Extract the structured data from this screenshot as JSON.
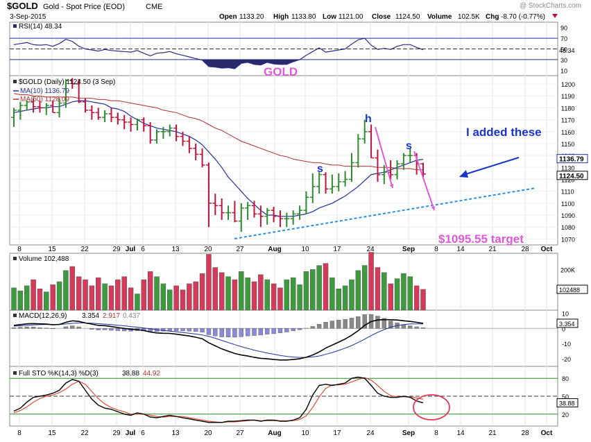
{
  "header": {
    "symbol": "$GOLD",
    "description": "Gold - Spot Price (EOD)",
    "exchange": "CME",
    "watermark": "@ StockCharts.com",
    "date": "3-Sep-2015",
    "open_label": "Open",
    "open": "1133.20",
    "high_label": "High",
    "high": "1133.80",
    "low_label": "Low",
    "low": "1121.00",
    "close_label": "Close",
    "close": "1124.50",
    "volume_label": "Volume",
    "volume": "102.5K",
    "chg_label": "Chg",
    "chg": "-8.70 (-0.77%)"
  },
  "rsi_panel": {
    "legend": "RSI(14) 48.34",
    "value": "48.34",
    "ticks": [
      "90",
      "70",
      "50",
      "30",
      "10"
    ]
  },
  "price_panel": {
    "legend": "$GOLD (Daily) 1124.50 (3 Sep)",
    "ma10_label": "MA(10) 1136.79",
    "ma50_label": "MA(50) 1128.09",
    "ma10_value": "1136.79",
    "ma50_value": "1128.09",
    "close_value": "1124.50",
    "ticks": [
      "1200",
      "1190",
      "1180",
      "1170",
      "1160",
      "1150",
      "1140",
      "1130",
      "1120",
      "1110",
      "1100",
      "1090",
      "1080",
      "1070"
    ]
  },
  "annotations": {
    "gold_title": "GOLD",
    "shoulder_left": "s",
    "head": "h",
    "shoulder_right": "s",
    "note": "I added these",
    "target": "$1095.55 target"
  },
  "volume_panel": {
    "legend": "Volume 102,488",
    "value": "102488",
    "ticks": [
      "200K"
    ]
  },
  "macd_panel": {
    "legend_name": "MACD(12,26,9)",
    "macd": "3.354",
    "signal": "2.917",
    "hist": "0.437",
    "ticks": [
      "10",
      "0",
      "-10",
      "-20"
    ]
  },
  "sto_panel": {
    "legend_name": "Full STO %K(14,3) %D(3)",
    "k": "38.88",
    "d": "44.92",
    "ticks": [
      "80",
      "50",
      "20"
    ]
  },
  "x_axis": {
    "labels": [
      "8",
      "15",
      "22",
      "29",
      "Jul",
      "6",
      "13",
      "20",
      "27",
      "Aug",
      "10",
      "17",
      "24",
      "Sep",
      "8",
      "14",
      "21",
      "28",
      "Oct"
    ]
  },
  "colors": {
    "up": "#2e8b2e",
    "down": "#c0143c",
    "ma10": "#1f2f9e",
    "ma50": "#b03030",
    "annotation_blue": "#1a35c8",
    "annotation_pink": "#e05ad8",
    "trendline": "#2a8ee0",
    "rsi_fill": "#2a2a6a",
    "circle": "#e03a5a"
  },
  "chart_data": [
    {
      "type": "candlestick",
      "title": "$GOLD (Daily)",
      "series_name": "$GOLD",
      "dates": [
        "Jun 8",
        "Jun 9",
        "Jun 10",
        "Jun 11",
        "Jun 12",
        "Jun 15",
        "Jun 16",
        "Jun 17",
        "Jun 18",
        "Jun 19",
        "Jun 22",
        "Jun 23",
        "Jun 24",
        "Jun 25",
        "Jun 26",
        "Jun 29",
        "Jun 30",
        "Jul 1",
        "Jul 2",
        "Jul 3",
        "Jul 6",
        "Jul 7",
        "Jul 8",
        "Jul 9",
        "Jul 10",
        "Jul 13",
        "Jul 14",
        "Jul 15",
        "Jul 16",
        "Jul 17",
        "Jul 20",
        "Jul 21",
        "Jul 22",
        "Jul 23",
        "Jul 24",
        "Jul 27",
        "Jul 28",
        "Jul 29",
        "Jul 30",
        "Jul 31",
        "Aug 3",
        "Aug 4",
        "Aug 5",
        "Aug 6",
        "Aug 7",
        "Aug 10",
        "Aug 11",
        "Aug 12",
        "Aug 13",
        "Aug 14",
        "Aug 17",
        "Aug 18",
        "Aug 19",
        "Aug 20",
        "Aug 21",
        "Aug 24",
        "Aug 25",
        "Aug 26",
        "Aug 27",
        "Aug 28",
        "Aug 31",
        "Sep 1",
        "Sep 2",
        "Sep 3"
      ],
      "open": [
        1172,
        1178,
        1182,
        1185,
        1181,
        1180,
        1182,
        1176,
        1184,
        1203,
        1200,
        1185,
        1178,
        1176,
        1172,
        1175,
        1172,
        1170,
        1168,
        1166,
        1170,
        1165,
        1153,
        1160,
        1160,
        1163,
        1156,
        1152,
        1146,
        1141,
        1132,
        1100,
        1098,
        1092,
        1092,
        1085,
        1096,
        1098,
        1091,
        1089,
        1094,
        1089,
        1087,
        1087,
        1091,
        1094,
        1105,
        1114,
        1124,
        1112,
        1114,
        1118,
        1120,
        1134,
        1154,
        1160,
        1138,
        1124,
        1126,
        1124,
        1133,
        1140,
        1140,
        1133
      ],
      "high": [
        1180,
        1185,
        1186,
        1188,
        1186,
        1184,
        1186,
        1188,
        1204,
        1205,
        1204,
        1188,
        1182,
        1180,
        1178,
        1180,
        1176,
        1174,
        1172,
        1171,
        1172,
        1168,
        1162,
        1164,
        1166,
        1166,
        1160,
        1156,
        1150,
        1146,
        1134,
        1108,
        1104,
        1098,
        1102,
        1100,
        1101,
        1102,
        1098,
        1096,
        1097,
        1094,
        1092,
        1094,
        1098,
        1110,
        1125,
        1126,
        1126,
        1124,
        1125,
        1127,
        1142,
        1158,
        1170,
        1166,
        1145,
        1132,
        1136,
        1136,
        1142,
        1146,
        1142,
        1134
      ],
      "low": [
        1164,
        1170,
        1178,
        1176,
        1176,
        1174,
        1176,
        1172,
        1180,
        1196,
        1184,
        1176,
        1170,
        1170,
        1168,
        1168,
        1166,
        1162,
        1160,
        1161,
        1160,
        1150,
        1150,
        1154,
        1156,
        1152,
        1148,
        1142,
        1136,
        1130,
        1080,
        1090,
        1086,
        1086,
        1084,
        1076,
        1086,
        1088,
        1080,
        1082,
        1084,
        1080,
        1080,
        1082,
        1086,
        1091,
        1100,
        1108,
        1108,
        1108,
        1110,
        1114,
        1118,
        1130,
        1150,
        1138,
        1118,
        1116,
        1120,
        1120,
        1128,
        1134,
        1124,
        1121
      ],
      "close": [
        1178,
        1182,
        1185,
        1181,
        1180,
        1182,
        1176,
        1184,
        1203,
        1200,
        1185,
        1178,
        1176,
        1172,
        1175,
        1172,
        1170,
        1168,
        1166,
        1170,
        1165,
        1153,
        1160,
        1160,
        1163,
        1156,
        1152,
        1146,
        1141,
        1132,
        1100,
        1098,
        1092,
        1092,
        1085,
        1096,
        1098,
        1091,
        1089,
        1094,
        1089,
        1087,
        1087,
        1091,
        1094,
        1105,
        1114,
        1124,
        1112,
        1114,
        1118,
        1120,
        1134,
        1154,
        1160,
        1138,
        1124,
        1126,
        1124,
        1133,
        1140,
        1140,
        1133,
        1124.5
      ],
      "ma10": [
        1176,
        1177,
        1178,
        1179,
        1180,
        1180,
        1181,
        1181,
        1183,
        1185,
        1186,
        1186,
        1185,
        1184,
        1183,
        1180,
        1179,
        1177,
        1173,
        1170,
        1167,
        1165,
        1163,
        1162,
        1161,
        1160,
        1158,
        1156,
        1153,
        1149,
        1143,
        1137,
        1130,
        1122,
        1116,
        1110,
        1104,
        1099,
        1094,
        1090,
        1090,
        1089,
        1089,
        1089,
        1090,
        1091,
        1093,
        1096,
        1098,
        1100,
        1103,
        1106,
        1110,
        1114,
        1119,
        1124,
        1125,
        1126,
        1128,
        1130,
        1132,
        1134,
        1136,
        1136.79
      ],
      "ma50": [
        1192,
        1191,
        1191,
        1190,
        1190,
        1189,
        1189,
        1189,
        1189,
        1189,
        1188,
        1188,
        1188,
        1187,
        1187,
        1186,
        1186,
        1185,
        1184,
        1183,
        1182,
        1181,
        1180,
        1178,
        1177,
        1176,
        1174,
        1172,
        1171,
        1169,
        1166,
        1163,
        1161,
        1158,
        1155,
        1152,
        1150,
        1148,
        1146,
        1144,
        1142,
        1140,
        1139,
        1137,
        1136,
        1135,
        1134,
        1134,
        1133,
        1132,
        1132,
        1131,
        1131,
        1131,
        1131,
        1131,
        1130,
        1130,
        1130,
        1129,
        1129,
        1129,
        1128,
        1128.09
      ],
      "ylim": [
        1065,
        1207
      ]
    },
    {
      "type": "line",
      "title": "RSI(14)",
      "ylim": [
        0,
        100
      ],
      "values": [
        58,
        60,
        62,
        58,
        57,
        58,
        55,
        60,
        68,
        64,
        55,
        50,
        48,
        46,
        49,
        47,
        46,
        45,
        44,
        47,
        42,
        37,
        42,
        43,
        45,
        41,
        38,
        35,
        32,
        29,
        17,
        16,
        14,
        15,
        13,
        23,
        25,
        21,
        20,
        25,
        22,
        21,
        21,
        26,
        30,
        38,
        45,
        52,
        44,
        46,
        48,
        50,
        59,
        67,
        70,
        57,
        49,
        51,
        49,
        55,
        58,
        58,
        53,
        48.34
      ]
    },
    {
      "type": "bar",
      "title": "Volume",
      "ylim": [
        0,
        280000
      ],
      "values": [
        110000,
        95000,
        120000,
        150000,
        105000,
        90000,
        125000,
        140000,
        195000,
        215000,
        165000,
        150000,
        120000,
        160000,
        130000,
        120000,
        150000,
        165000,
        110000,
        80000,
        150000,
        190000,
        165000,
        130000,
        100000,
        120000,
        100000,
        130000,
        140000,
        180000,
        275000,
        210000,
        185000,
        165000,
        150000,
        190000,
        160000,
        140000,
        175000,
        150000,
        130000,
        110000,
        150000,
        160000,
        125000,
        190000,
        200000,
        220000,
        230000,
        160000,
        105000,
        120000,
        150000,
        195000,
        220000,
        285000,
        210000,
        185000,
        130000,
        155000,
        180000,
        165000,
        120000,
        102488
      ]
    },
    {
      "type": "line",
      "title": "MACD(12,26,9)",
      "ylim": [
        -25,
        12
      ],
      "macd": [
        2,
        2.5,
        3,
        3.2,
        3,
        2.8,
        2.4,
        2.6,
        4,
        5,
        4.6,
        3.6,
        2.8,
        2,
        1.8,
        1.2,
        0.6,
        0,
        -0.6,
        -0.8,
        -1.4,
        -2.4,
        -3,
        -3.2,
        -3.3,
        -3.8,
        -4.4,
        -5,
        -5.8,
        -6.8,
        -9.5,
        -11.5,
        -13.5,
        -15,
        -16.5,
        -17.5,
        -18.2,
        -19,
        -19.7,
        -20,
        -20.5,
        -20.8,
        -20.8,
        -20.5,
        -20,
        -19,
        -17.5,
        -15.5,
        -13,
        -11,
        -9,
        -7,
        -4.5,
        -1.5,
        2,
        4.5,
        5.5,
        5.8,
        5.7,
        5.5,
        5,
        4.6,
        4,
        3.354
      ],
      "signal": [
        1.5,
        1.7,
        2,
        2.3,
        2.5,
        2.6,
        2.6,
        2.6,
        2.9,
        3.3,
        3.6,
        3.6,
        3.4,
        3.1,
        2.8,
        2.5,
        2.1,
        1.7,
        1.2,
        0.8,
        0.3,
        -0.3,
        -0.9,
        -1.4,
        -1.8,
        -2.2,
        -2.7,
        -3.2,
        -3.7,
        -4.3,
        -5.3,
        -6.5,
        -7.9,
        -9.3,
        -10.7,
        -12,
        -13.2,
        -14.3,
        -15.3,
        -16.2,
        -17,
        -17.8,
        -18.4,
        -18.9,
        -19.1,
        -19.1,
        -18.8,
        -18.2,
        -17.1,
        -15.9,
        -14.5,
        -13,
        -11.3,
        -9.3,
        -7.1,
        -4.7,
        -2.6,
        -0.8,
        0.8,
        1.8,
        2.5,
        2.9,
        2.95,
        2.917
      ],
      "histogram": [
        0.5,
        0.8,
        1,
        0.9,
        0.5,
        0.2,
        -0.2,
        0,
        1.1,
        1.7,
        1,
        0,
        -0.6,
        -1.1,
        -1,
        -1.3,
        -1.5,
        -1.7,
        -1.8,
        -1.6,
        -1.7,
        -2.1,
        -2.1,
        -1.8,
        -1.5,
        -1.6,
        -1.7,
        -1.8,
        -2.1,
        -2.5,
        -4.2,
        -5,
        -5.6,
        -5.7,
        -5.8,
        -5.5,
        -5,
        -4.7,
        -4.4,
        -3.8,
        -3.5,
        -3,
        -2.4,
        -1.6,
        -0.9,
        0.1,
        1.3,
        2.7,
        4.1,
        4.9,
        5.5,
        6,
        6.8,
        7.8,
        9.1,
        9.2,
        8.1,
        6.6,
        4.9,
        3.7,
        2.5,
        1.7,
        1.05,
        0.437
      ]
    },
    {
      "type": "line",
      "title": "Full STO %K(14,3) %D(3)",
      "ylim": [
        0,
        100
      ],
      "k": [
        25,
        30,
        40,
        48,
        50,
        52,
        55,
        60,
        72,
        78,
        75,
        60,
        45,
        35,
        30,
        28,
        24,
        20,
        18,
        22,
        20,
        15,
        14,
        16,
        18,
        16,
        14,
        12,
        10,
        8,
        6,
        6,
        6,
        8,
        8,
        9,
        10,
        10,
        8,
        10,
        10,
        8,
        8,
        10,
        14,
        28,
        52,
        68,
        70,
        68,
        70,
        72,
        80,
        82,
        80,
        68,
        55,
        50,
        48,
        48,
        50,
        48,
        42,
        38.88
      ],
      "d": [
        22,
        26,
        32,
        40,
        46,
        50,
        52,
        56,
        62,
        70,
        75,
        70,
        58,
        46,
        37,
        31,
        27,
        24,
        20,
        20,
        20,
        18,
        16,
        15,
        16,
        16,
        16,
        14,
        12,
        10,
        8,
        7,
        6,
        7,
        7,
        8,
        9,
        10,
        9,
        9,
        9,
        9,
        9,
        9,
        11,
        17,
        31,
        49,
        63,
        69,
        69,
        70,
        74,
        78,
        81,
        77,
        68,
        58,
        51,
        49,
        49,
        49,
        47,
        44.92
      ]
    }
  ]
}
